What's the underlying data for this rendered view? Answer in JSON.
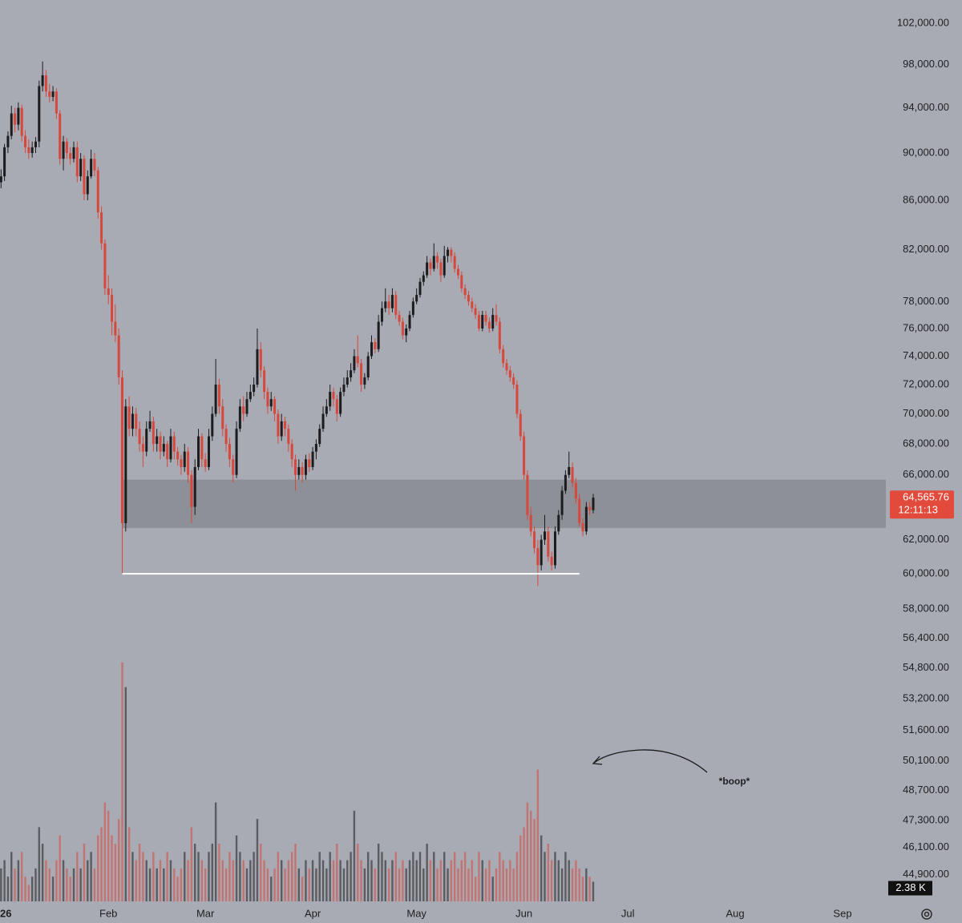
{
  "chart_data": {
    "type": "candlestick",
    "log_scale": true,
    "background": "#a8abb3",
    "up_color": "#1c1c1e",
    "down_color": "#d8473c",
    "xlim": [
      -0.3,
      255.5
    ],
    "xticks": [
      {
        "value": 0,
        "label": "26"
      },
      {
        "value": 31,
        "label": "Feb"
      },
      {
        "value": 59,
        "label": "Mar"
      },
      {
        "value": 90,
        "label": "Apr"
      },
      {
        "value": 120,
        "label": "May"
      },
      {
        "value": 151,
        "label": "Jun"
      },
      {
        "value": 181,
        "label": "Jul"
      },
      {
        "value": 212,
        "label": "Aug"
      },
      {
        "value": 243,
        "label": "Sep"
      }
    ],
    "ylim": [
      43760,
      104300
    ],
    "yticks": [
      {
        "value": 102000,
        "label": "102,000.00"
      },
      {
        "value": 98000,
        "label": "98,000.00"
      },
      {
        "value": 94000,
        "label": "94,000.00"
      },
      {
        "value": 90000,
        "label": "90,000.00"
      },
      {
        "value": 86000,
        "label": "86,000.00"
      },
      {
        "value": 82000,
        "label": "82,000.00"
      },
      {
        "value": 78000,
        "label": "78,000.00"
      },
      {
        "value": 76000,
        "label": "76,000.00"
      },
      {
        "value": 74000,
        "label": "74,000.00"
      },
      {
        "value": 72000,
        "label": "72,000.00"
      },
      {
        "value": 70000,
        "label": "70,000.00"
      },
      {
        "value": 68000,
        "label": "68,000.00"
      },
      {
        "value": 66000,
        "label": "66,000.00"
      },
      {
        "value": 62000,
        "label": "62,000.00"
      },
      {
        "value": 60000,
        "label": "60,000.00"
      },
      {
        "value": 58000,
        "label": "58,000.00"
      },
      {
        "value": 56400,
        "label": "56,400.00"
      },
      {
        "value": 54800,
        "label": "54,800.00"
      },
      {
        "value": 53200,
        "label": "53,200.00"
      },
      {
        "value": 51600,
        "label": "51,600.00"
      },
      {
        "value": 50100,
        "label": "50,100.00"
      },
      {
        "value": 48700,
        "label": "48,700.00"
      },
      {
        "value": 47300,
        "label": "47,300.00"
      },
      {
        "value": 46100,
        "label": "46,100.00"
      },
      {
        "value": 44900,
        "label": "44,900.00"
      }
    ],
    "volume_ylim": [
      0,
      35
    ],
    "zone": {
      "low": 62700,
      "high": 65700,
      "from": 35,
      "color": "#8e9098"
    },
    "support_line": {
      "value": 60000,
      "from": 35,
      "to": 167,
      "color": "#ffffff"
    },
    "last_price": {
      "value": 64565.76,
      "label": "64,565.76"
    },
    "countdown": "12:11:13",
    "last_volume": {
      "value": 2.38,
      "label": "2.38 K"
    },
    "annotation": "*boop*",
    "candles": [
      [
        87500,
        88600,
        87000,
        88000
      ],
      [
        88000,
        90800,
        87600,
        90500
      ],
      [
        90500,
        91900,
        90000,
        91500
      ],
      [
        91500,
        94200,
        91200,
        93500
      ],
      [
        93500,
        94000,
        91800,
        92500
      ],
      [
        92500,
        94500,
        92000,
        94000
      ],
      [
        94000,
        94300,
        91000,
        91500
      ],
      [
        91500,
        92000,
        90000,
        90500
      ],
      [
        90500,
        91200,
        89500,
        90000
      ],
      [
        90000,
        91000,
        89600,
        90500
      ],
      [
        90500,
        91400,
        90000,
        91000
      ],
      [
        91000,
        96500,
        90500,
        96000
      ],
      [
        96000,
        98300,
        95500,
        97000
      ],
      [
        97000,
        97500,
        95000,
        95500
      ],
      [
        95500,
        96200,
        94500,
        95000
      ],
      [
        95000,
        96000,
        94600,
        95500
      ],
      [
        95500,
        95800,
        93000,
        93500
      ],
      [
        93500,
        93800,
        89000,
        89500
      ],
      [
        89500,
        91500,
        88500,
        91000
      ],
      [
        91000,
        91300,
        89500,
        90000
      ],
      [
        90000,
        90500,
        89000,
        89500
      ],
      [
        89500,
        91000,
        89200,
        90500
      ],
      [
        90500,
        91000,
        87500,
        88000
      ],
      [
        88000,
        90000,
        87600,
        89500
      ],
      [
        89500,
        89800,
        86000,
        86500
      ],
      [
        86500,
        88500,
        86000,
        88000
      ],
      [
        88000,
        90300,
        87800,
        89500
      ],
      [
        89500,
        90000,
        88000,
        88500
      ],
      [
        88500,
        88800,
        84500,
        85000
      ],
      [
        85000,
        85500,
        82000,
        82500
      ],
      [
        82500,
        82800,
        78500,
        79000
      ],
      [
        79000,
        80000,
        77800,
        78500
      ],
      [
        78500,
        79000,
        75500,
        76500
      ],
      [
        76500,
        77800,
        75000,
        75500
      ],
      [
        75500,
        76000,
        72000,
        72500
      ],
      [
        72500,
        73000,
        60000,
        63000
      ],
      [
        63000,
        71000,
        62500,
        70500
      ],
      [
        70500,
        71200,
        68500,
        69000
      ],
      [
        69000,
        70500,
        68500,
        70000
      ],
      [
        70000,
        70400,
        68500,
        69000
      ],
      [
        69000,
        69500,
        67500,
        68000
      ],
      [
        68000,
        68500,
        66500,
        67500
      ],
      [
        67500,
        69500,
        67200,
        69000
      ],
      [
        69000,
        70200,
        68800,
        69500
      ],
      [
        69500,
        69800,
        67500,
        68000
      ],
      [
        68000,
        69000,
        67500,
        68500
      ],
      [
        68500,
        68800,
        67000,
        67500
      ],
      [
        67500,
        68500,
        67200,
        68000
      ],
      [
        68000,
        68200,
        66500,
        67000
      ],
      [
        67000,
        69000,
        66800,
        68500
      ],
      [
        68500,
        68800,
        67000,
        67500
      ],
      [
        67500,
        67800,
        66600,
        67000
      ],
      [
        67000,
        67300,
        66000,
        66500
      ],
      [
        66500,
        68000,
        66200,
        67500
      ],
      [
        67500,
        67800,
        65500,
        66000
      ],
      [
        66000,
        66300,
        63000,
        64000
      ],
      [
        64000,
        67000,
        63500,
        66500
      ],
      [
        66500,
        69000,
        66300,
        68500
      ],
      [
        68500,
        68700,
        66500,
        67000
      ],
      [
        67000,
        67400,
        66200,
        66500
      ],
      [
        66500,
        69000,
        66300,
        68500
      ],
      [
        68500,
        70500,
        68200,
        70000
      ],
      [
        70000,
        73800,
        69800,
        72000
      ],
      [
        72000,
        72400,
        70000,
        70500
      ],
      [
        70500,
        71000,
        68500,
        69000
      ],
      [
        69000,
        69300,
        67500,
        68000
      ],
      [
        68000,
        68400,
        66500,
        67000
      ],
      [
        67000,
        67300,
        65500,
        66000
      ],
      [
        66000,
        69500,
        65800,
        69000
      ],
      [
        69000,
        71000,
        68800,
        70500
      ],
      [
        70500,
        71200,
        69500,
        70000
      ],
      [
        70000,
        71500,
        69800,
        71000
      ],
      [
        71000,
        72000,
        70800,
        71500
      ],
      [
        71500,
        72500,
        71200,
        72000
      ],
      [
        72000,
        76000,
        71800,
        74500
      ],
      [
        74500,
        75000,
        72500,
        73000
      ],
      [
        73000,
        73300,
        71000,
        71500
      ],
      [
        71500,
        71800,
        70000,
        70500
      ],
      [
        70500,
        71500,
        70200,
        71000
      ],
      [
        71000,
        71200,
        69500,
        70000
      ],
      [
        70000,
        70300,
        68000,
        68500
      ],
      [
        68500,
        70000,
        68200,
        69500
      ],
      [
        69500,
        69800,
        68500,
        69000
      ],
      [
        69000,
        69300,
        67500,
        68000
      ],
      [
        68000,
        68300,
        66500,
        67000
      ],
      [
        67000,
        67300,
        65000,
        66000
      ],
      [
        66000,
        67000,
        65700,
        66500
      ],
      [
        66500,
        66800,
        65500,
        66000
      ],
      [
        66000,
        67300,
        65700,
        67000
      ],
      [
        67000,
        67400,
        66200,
        66500
      ],
      [
        66500,
        67800,
        66300,
        67500
      ],
      [
        67500,
        68300,
        67000,
        68000
      ],
      [
        68000,
        69300,
        67800,
        69000
      ],
      [
        69000,
        70500,
        68800,
        70000
      ],
      [
        70000,
        71000,
        69800,
        70500
      ],
      [
        70500,
        72000,
        70200,
        71500
      ],
      [
        71500,
        71800,
        70500,
        71000
      ],
      [
        71000,
        71300,
        69500,
        70000
      ],
      [
        70000,
        71800,
        69800,
        71500
      ],
      [
        71500,
        72500,
        71200,
        72000
      ],
      [
        72000,
        73000,
        71800,
        72500
      ],
      [
        72500,
        73500,
        72200,
        73000
      ],
      [
        73000,
        74500,
        72800,
        74000
      ],
      [
        74000,
        75500,
        73200,
        73500
      ],
      [
        73500,
        73800,
        71500,
        72000
      ],
      [
        72000,
        72800,
        71700,
        72500
      ],
      [
        72500,
        74300,
        72300,
        74000
      ],
      [
        74000,
        75500,
        73800,
        75000
      ],
      [
        75000,
        75300,
        74200,
        74500
      ],
      [
        74500,
        77000,
        74300,
        76500
      ],
      [
        76500,
        78000,
        76200,
        77500
      ],
      [
        77500,
        79000,
        77200,
        78000
      ],
      [
        78000,
        78500,
        77000,
        77500
      ],
      [
        77500,
        79000,
        77200,
        78500
      ],
      [
        78500,
        78800,
        76700,
        77000
      ],
      [
        77000,
        77300,
        76200,
        76500
      ],
      [
        76500,
        76800,
        75200,
        75500
      ],
      [
        75500,
        76300,
        75000,
        76000
      ],
      [
        76000,
        77300,
        75800,
        77000
      ],
      [
        77000,
        78300,
        76800,
        78000
      ],
      [
        78000,
        79000,
        77800,
        78500
      ],
      [
        78500,
        79800,
        78300,
        79500
      ],
      [
        79500,
        80300,
        79200,
        80000
      ],
      [
        80000,
        81500,
        79800,
        81000
      ],
      [
        81000,
        81300,
        80000,
        80500
      ],
      [
        80500,
        82500,
        80300,
        81500
      ],
      [
        81500,
        81800,
        80500,
        81000
      ],
      [
        81000,
        81300,
        79500,
        80000
      ],
      [
        80000,
        82300,
        79800,
        81500
      ],
      [
        81500,
        82200,
        81000,
        82000
      ],
      [
        82000,
        82200,
        81000,
        81500
      ],
      [
        81500,
        81800,
        80200,
        80500
      ],
      [
        80500,
        80800,
        79700,
        80000
      ],
      [
        80000,
        80300,
        78700,
        79000
      ],
      [
        79000,
        79300,
        78200,
        78500
      ],
      [
        78500,
        78800,
        77700,
        78000
      ],
      [
        78000,
        78300,
        77200,
        77500
      ],
      [
        77500,
        77800,
        76700,
        77000
      ],
      [
        77000,
        77300,
        75800,
        76000
      ],
      [
        76000,
        77300,
        75800,
        77000
      ],
      [
        77000,
        77300,
        76200,
        76500
      ],
      [
        76500,
        76800,
        75700,
        76000
      ],
      [
        76000,
        77500,
        75800,
        77000
      ],
      [
        77000,
        77800,
        76200,
        76500
      ],
      [
        76500,
        76800,
        74200,
        74500
      ],
      [
        74500,
        74800,
        73200,
        73500
      ],
      [
        73500,
        73800,
        72700,
        73000
      ],
      [
        73000,
        73300,
        72200,
        72500
      ],
      [
        72500,
        72800,
        71700,
        72000
      ],
      [
        72000,
        72300,
        69700,
        70000
      ],
      [
        70000,
        70300,
        68200,
        68500
      ],
      [
        68500,
        68800,
        65700,
        66000
      ],
      [
        66000,
        66300,
        63200,
        63500
      ],
      [
        63500,
        64000,
        62200,
        62500
      ],
      [
        62500,
        62800,
        61200,
        61500
      ],
      [
        61500,
        62000,
        59300,
        60500
      ],
      [
        60500,
        62300,
        60200,
        62000
      ],
      [
        62000,
        63500,
        61700,
        62500
      ],
      [
        62500,
        62800,
        60700,
        61000
      ],
      [
        61000,
        61300,
        60200,
        60500
      ],
      [
        60500,
        62800,
        60300,
        62500
      ],
      [
        62500,
        63800,
        62300,
        63500
      ],
      [
        63500,
        65300,
        63200,
        65000
      ],
      [
        65000,
        66300,
        64800,
        66000
      ],
      [
        66000,
        67500,
        65800,
        66500
      ],
      [
        66500,
        66800,
        65200,
        65500
      ],
      [
        65500,
        65800,
        64200,
        64500
      ],
      [
        64500,
        64800,
        62800,
        63000
      ],
      [
        63000,
        63300,
        62200,
        62500
      ],
      [
        62500,
        64300,
        62300,
        64000
      ],
      [
        64000,
        64300,
        63500,
        63800
      ],
      [
        63800,
        64800,
        63600,
        64565.76
      ]
    ],
    "volume": [
      4,
      5,
      3,
      6,
      4,
      5,
      6,
      3,
      2,
      3,
      4,
      9,
      7,
      5,
      4,
      3,
      5,
      8,
      5,
      4,
      3,
      4,
      6,
      4,
      7,
      5,
      6,
      4,
      8,
      9,
      12,
      11,
      8,
      7,
      10,
      29,
      26,
      9,
      6,
      5,
      7,
      6,
      5,
      4,
      6,
      4,
      5,
      4,
      6,
      5,
      4,
      3,
      4,
      6,
      5,
      9,
      7,
      6,
      5,
      4,
      6,
      7,
      12,
      7,
      5,
      4,
      6,
      5,
      8,
      6,
      5,
      4,
      5,
      6,
      10,
      7,
      5,
      4,
      3,
      4,
      6,
      5,
      4,
      5,
      6,
      7,
      4,
      3,
      5,
      4,
      5,
      4,
      6,
      5,
      4,
      6,
      5,
      7,
      5,
      4,
      5,
      6,
      11,
      7,
      5,
      4,
      6,
      5,
      4,
      7,
      6,
      5,
      4,
      5,
      6,
      4,
      5,
      4,
      5,
      6,
      5,
      6,
      4,
      7,
      5,
      6,
      4,
      5,
      6,
      4,
      5,
      6,
      4,
      5,
      6,
      4,
      5,
      3,
      6,
      5,
      4,
      5,
      3,
      4,
      6,
      5,
      4,
      5,
      4,
      6,
      8,
      9,
      12,
      11,
      10,
      16,
      8,
      6,
      7,
      5,
      6,
      5,
      4,
      6,
      5,
      4,
      5,
      4,
      3,
      4,
      3,
      2.38
    ]
  }
}
